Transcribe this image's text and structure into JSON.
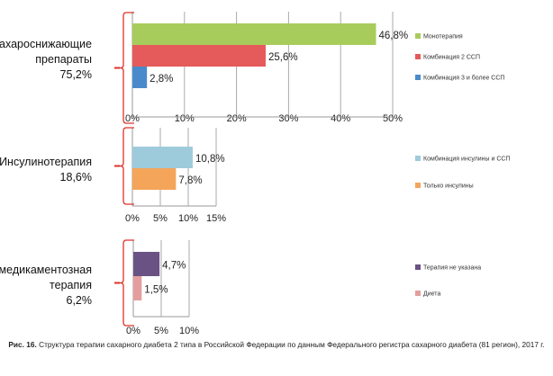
{
  "chart_data": [
    {
      "type": "bar",
      "group_label": [
        "Сахароснижающие",
        "препараты",
        "75,2%"
      ],
      "categories": [
        "Монотерапия",
        "Комбинация 2 ССП",
        "Комбинация 3 и более ССП"
      ],
      "values": [
        46.8,
        25.6,
        2.8
      ],
      "value_labels": [
        "46,8%",
        "25,6%",
        "2,8%"
      ],
      "colors": [
        "#a8cc5c",
        "#e55a5a",
        "#4a8acb"
      ],
      "xlim": [
        0,
        50
      ],
      "ticks": [
        "0%",
        "10%",
        "20%",
        "30%",
        "40%",
        "50%"
      ],
      "legend": "right"
    },
    {
      "type": "bar",
      "group_label": [
        "Инсулинотерапия",
        "18,6%"
      ],
      "categories": [
        "Комбинация инсулины и ССП",
        "Только инсулины"
      ],
      "values": [
        10.8,
        7.8
      ],
      "value_labels": [
        "10,8%",
        "7,8%"
      ],
      "colors": [
        "#9ecbdb",
        "#f4a55a"
      ],
      "xlim": [
        0,
        15
      ],
      "ticks": [
        "0%",
        "5%",
        "10%",
        "15%"
      ],
      "legend": "right"
    },
    {
      "type": "bar",
      "group_label": [
        "Немедикаментозная",
        "терапия",
        "6,2%"
      ],
      "categories": [
        "Терапия не указана",
        "Диета"
      ],
      "values": [
        4.7,
        1.5
      ],
      "value_labels": [
        "4,7%",
        "1,5%"
      ],
      "colors": [
        "#6a5384",
        "#e59e9e"
      ],
      "xlim": [
        0,
        10
      ],
      "ticks": [
        "0%",
        "5%",
        "10%"
      ],
      "legend": "right"
    }
  ],
  "caption": {
    "label": "Рис. 16.",
    "text": " Структура терапии сахарного диабета 2 типа в Российской Федерации по данным Федерального регистра сахарного диабета (81 регион), 2017 г."
  }
}
